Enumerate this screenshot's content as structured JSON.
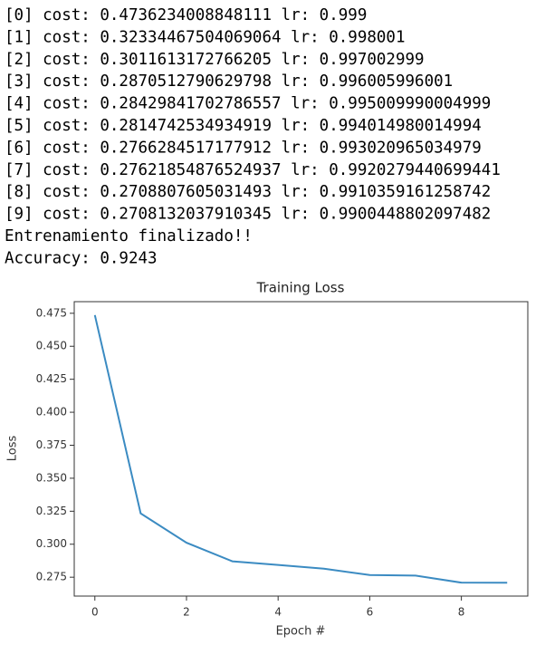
{
  "log_lines": [
    "[0] cost: 0.4736234008848111 lr: 0.999",
    "[1] cost: 0.32334467504069064 lr: 0.998001",
    "[2] cost: 0.3011613172766205 lr: 0.997002999",
    "[3] cost: 0.2870512790629798 lr: 0.996005996001",
    "[4] cost: 0.28429841702786557 lr: 0.995009990004999",
    "[5] cost: 0.2814742534934919 lr: 0.994014980014994",
    "[6] cost: 0.2766284517177912 lr: 0.993020965034979",
    "[7] cost: 0.27621854876524937 lr: 0.9920279440699441",
    "[8] cost: 0.2708807605031493 lr: 0.9910359161258742",
    "[9] cost: 0.2708132037910345 lr: 0.9900448802097482",
    "Entrenamiento finalizado!!",
    "Accuracy: 0.9243"
  ],
  "chart_data": {
    "type": "line",
    "title": "Training Loss",
    "x_label": "Epoch #",
    "y_label": "Loss",
    "x": [
      0,
      1,
      2,
      3,
      4,
      5,
      6,
      7,
      8,
      9
    ],
    "values": [
      0.4736234008848111,
      0.32334467504069064,
      0.3011613172766205,
      0.2870512790629798,
      0.28429841702786557,
      0.2814742534934919,
      0.2766284517177912,
      0.27621854876524937,
      0.2708807605031493,
      0.2708132037910345
    ],
    "color": "#3b8bc2",
    "xlim": [
      -0.45,
      9.45
    ],
    "xticks": [
      0,
      2,
      4,
      6,
      8
    ],
    "ylim": [
      0.2607,
      0.4838
    ],
    "yticks": [
      0.275,
      {
        "value": 0.3,
        "label": "0.300"
      },
      0.325,
      {
        "value": 0.35,
        "label": "0.350"
      },
      0.375,
      {
        "value": 0.4,
        "label": "0.400"
      },
      0.425,
      {
        "value": 0.45,
        "label": "0.450"
      },
      0.475
    ]
  }
}
